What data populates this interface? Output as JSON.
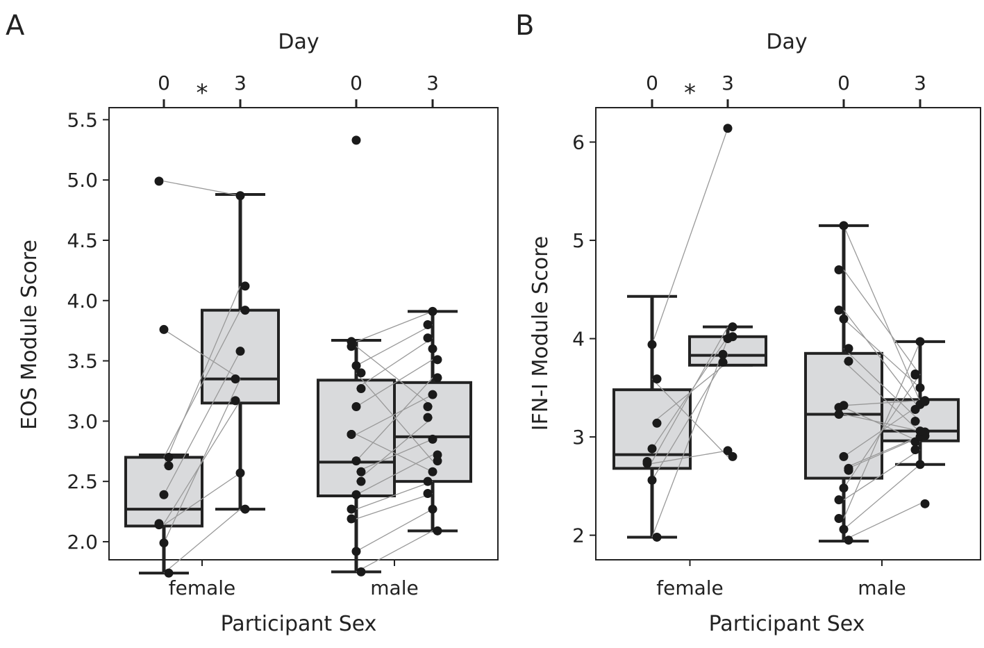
{
  "chart_data": [
    {
      "panel": "A",
      "type": "boxplot",
      "xlabel": "Participant Sex",
      "ylabel": "EOS Module Score",
      "top_axis_label": "Day",
      "ylim": [
        1.85,
        5.6
      ],
      "yticks": [
        "2.0",
        "2.5",
        "3.0",
        "3.5",
        "4.0",
        "4.5",
        "5.0",
        "5.5"
      ],
      "categories": [
        "female",
        "male"
      ],
      "days": [
        "0",
        "3"
      ],
      "significance": [
        {
          "group": "female",
          "marker": "*"
        }
      ],
      "groups": [
        {
          "sex": "female",
          "day": "0",
          "slot": 0,
          "whisker_low": 1.74,
          "q1": 2.13,
          "median": 2.27,
          "q3": 2.7,
          "whisker_high": 2.72,
          "points": [
            1.74,
            1.99,
            2.14,
            2.15,
            2.39,
            2.63,
            2.7,
            3.76,
            4.99
          ]
        },
        {
          "sex": "female",
          "day": "3",
          "slot": 1,
          "whisker_low": 2.27,
          "q1": 3.15,
          "median": 3.35,
          "q3": 3.92,
          "whisker_high": 4.88,
          "points": [
            2.27,
            2.57,
            3.17,
            3.35,
            3.58,
            3.92,
            4.12,
            4.87
          ]
        },
        {
          "sex": "male",
          "day": "0",
          "slot": 2,
          "whisker_low": 1.75,
          "q1": 2.38,
          "median": 2.66,
          "q3": 3.34,
          "whisker_high": 3.67,
          "points": [
            1.75,
            1.92,
            2.19,
            2.27,
            2.39,
            2.5,
            2.58,
            2.67,
            2.89,
            2.89,
            3.12,
            3.27,
            3.4,
            3.46,
            3.62,
            3.66,
            5.33
          ]
        },
        {
          "sex": "male",
          "day": "3",
          "slot": 3,
          "whisker_low": 2.09,
          "q1": 2.5,
          "median": 2.87,
          "q3": 3.32,
          "whisker_high": 3.91,
          "points": [
            2.09,
            2.27,
            2.4,
            2.5,
            2.58,
            2.67,
            2.72,
            2.85,
            3.03,
            3.12,
            3.22,
            3.36,
            3.51,
            3.6,
            3.69,
            3.8,
            3.91
          ]
        }
      ],
      "pairs": [
        [
          [
            0,
            4.99
          ],
          [
            1,
            4.87
          ]
        ],
        [
          [
            0,
            3.76
          ],
          [
            1,
            3.35
          ]
        ],
        [
          [
            0,
            2.7
          ],
          [
            1,
            3.92
          ]
        ],
        [
          [
            0,
            2.63
          ],
          [
            1,
            4.12
          ]
        ],
        [
          [
            0,
            2.39
          ],
          [
            1,
            3.58
          ]
        ],
        [
          [
            0,
            2.15
          ],
          [
            1,
            3.17
          ]
        ],
        [
          [
            0,
            2.14
          ],
          [
            1,
            2.57
          ]
        ],
        [
          [
            0,
            1.99
          ],
          [
            1,
            3.35
          ]
        ],
        [
          [
            0,
            1.74
          ],
          [
            1,
            2.27
          ]
        ],
        [
          [
            2,
            3.66
          ],
          [
            3,
            3.91
          ]
        ],
        [
          [
            2,
            3.62
          ],
          [
            3,
            3.12
          ]
        ],
        [
          [
            2,
            3.46
          ],
          [
            3,
            3.8
          ]
        ],
        [
          [
            2,
            3.4
          ],
          [
            3,
            2.67
          ]
        ],
        [
          [
            2,
            3.27
          ],
          [
            3,
            3.69
          ]
        ],
        [
          [
            2,
            3.12
          ],
          [
            3,
            3.51
          ]
        ],
        [
          [
            2,
            2.89
          ],
          [
            3,
            3.22
          ]
        ],
        [
          [
            2,
            2.89
          ],
          [
            3,
            2.58
          ]
        ],
        [
          [
            2,
            2.67
          ],
          [
            3,
            3.36
          ]
        ],
        [
          [
            2,
            2.58
          ],
          [
            3,
            2.85
          ]
        ],
        [
          [
            2,
            2.5
          ],
          [
            3,
            3.03
          ]
        ],
        [
          [
            2,
            2.39
          ],
          [
            3,
            2.72
          ]
        ],
        [
          [
            2,
            2.27
          ],
          [
            3,
            2.5
          ]
        ],
        [
          [
            2,
            2.19
          ],
          [
            3,
            2.4
          ]
        ],
        [
          [
            2,
            1.92
          ],
          [
            3,
            2.27
          ]
        ],
        [
          [
            2,
            1.75
          ],
          [
            3,
            2.09
          ]
        ]
      ]
    },
    {
      "panel": "B",
      "type": "boxplot",
      "xlabel": "Participant Sex",
      "ylabel": "IFN-I Module Score",
      "top_axis_label": "Day",
      "ylim": [
        1.75,
        6.35
      ],
      "yticks": [
        "2",
        "3",
        "4",
        "5",
        "6"
      ],
      "categories": [
        "female",
        "male"
      ],
      "days": [
        "0",
        "3"
      ],
      "significance": [
        {
          "group": "female",
          "marker": "*"
        }
      ],
      "groups": [
        {
          "sex": "female",
          "day": "0",
          "slot": 0,
          "whisker_low": 1.98,
          "q1": 2.68,
          "median": 2.82,
          "q3": 3.48,
          "whisker_high": 4.43,
          "points": [
            1.98,
            2.56,
            2.73,
            2.75,
            2.88,
            3.14,
            3.59,
            3.94
          ]
        },
        {
          "sex": "female",
          "day": "3",
          "slot": 1,
          "whisker_low": 3.73,
          "q1": 3.73,
          "median": 3.83,
          "q3": 4.02,
          "whisker_high": 4.12,
          "points": [
            2.8,
            2.86,
            3.76,
            3.84,
            4.0,
            4.02,
            4.12,
            6.14
          ]
        },
        {
          "sex": "male",
          "day": "0",
          "slot": 2,
          "whisker_low": 1.94,
          "q1": 2.58,
          "median": 3.23,
          "q3": 3.85,
          "whisker_high": 5.15,
          "points": [
            1.95,
            2.06,
            2.17,
            2.36,
            2.48,
            2.66,
            2.68,
            2.8,
            3.23,
            3.3,
            3.32,
            3.77,
            3.9,
            4.2,
            4.29,
            4.7,
            5.15
          ]
        },
        {
          "sex": "male",
          "day": "3",
          "slot": 3,
          "whisker_low": 2.72,
          "q1": 2.96,
          "median": 3.06,
          "q3": 3.38,
          "whisker_high": 3.97,
          "points": [
            2.32,
            2.72,
            2.87,
            2.95,
            3.0,
            3.01,
            3.05,
            3.06,
            3.16,
            3.28,
            3.33,
            3.36,
            3.37,
            3.5,
            3.63,
            3.64,
            3.97
          ]
        }
      ],
      "pairs": [
        [
          [
            0,
            1.98
          ],
          [
            1,
            4.0
          ]
        ],
        [
          [
            0,
            2.56
          ],
          [
            1,
            3.84
          ]
        ],
        [
          [
            0,
            2.73
          ],
          [
            1,
            2.86
          ]
        ],
        [
          [
            0,
            2.75
          ],
          [
            1,
            4.12
          ]
        ],
        [
          [
            0,
            2.88
          ],
          [
            1,
            4.02
          ]
        ],
        [
          [
            0,
            3.14
          ],
          [
            1,
            3.76
          ]
        ],
        [
          [
            0,
            3.59
          ],
          [
            1,
            2.8
          ]
        ],
        [
          [
            0,
            3.94
          ],
          [
            1,
            6.14
          ]
        ],
        [
          [
            2,
            5.15
          ],
          [
            3,
            3.36
          ]
        ],
        [
          [
            2,
            4.7
          ],
          [
            3,
            3.63
          ]
        ],
        [
          [
            2,
            4.29
          ],
          [
            3,
            3.28
          ]
        ],
        [
          [
            2,
            4.2
          ],
          [
            3,
            3.5
          ]
        ],
        [
          [
            2,
            3.9
          ],
          [
            3,
            3.16
          ]
        ],
        [
          [
            2,
            3.77
          ],
          [
            3,
            3.05
          ]
        ],
        [
          [
            2,
            3.32
          ],
          [
            3,
            3.37
          ]
        ],
        [
          [
            2,
            3.3
          ],
          [
            3,
            2.95
          ]
        ],
        [
          [
            2,
            3.23
          ],
          [
            3,
            3.06
          ]
        ],
        [
          [
            2,
            2.8
          ],
          [
            3,
            3.33
          ]
        ],
        [
          [
            2,
            2.68
          ],
          [
            3,
            3.01
          ]
        ],
        [
          [
            2,
            2.66
          ],
          [
            3,
            3.0
          ]
        ],
        [
          [
            2,
            2.48
          ],
          [
            3,
            3.64
          ]
        ],
        [
          [
            2,
            2.36
          ],
          [
            3,
            2.87
          ]
        ],
        [
          [
            2,
            2.17
          ],
          [
            3,
            3.97
          ]
        ],
        [
          [
            2,
            2.06
          ],
          [
            3,
            2.72
          ]
        ],
        [
          [
            2,
            1.95
          ],
          [
            3,
            2.32
          ]
        ]
      ]
    }
  ],
  "colors": {
    "box_fill": "#d9dadc",
    "ink": "#222222",
    "pair_line": "#999999",
    "point": "#1a1a1a"
  }
}
